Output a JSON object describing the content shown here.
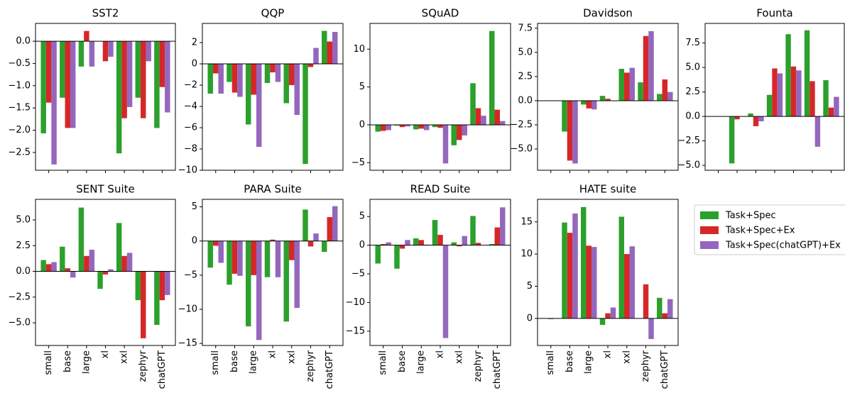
{
  "legend": {
    "series": [
      {
        "name": "Task+Spec",
        "color": "#2ca02c"
      },
      {
        "name": "Task+Spec+Ex",
        "color": "#d62728"
      },
      {
        "name": "Task+Spec(chatGPT)+Ex",
        "color": "#9467bd"
      }
    ]
  },
  "chart_data": [
    {
      "type": "bar",
      "title": "SST2",
      "categories": [
        null,
        null,
        null,
        null,
        null,
        null,
        null
      ],
      "series": [
        {
          "values": [
            -2.07,
            -1.27,
            -0.57,
            0,
            -2.52,
            -1.27,
            -1.95
          ]
        },
        {
          "values": [
            -1.38,
            -1.95,
            0.23,
            -0.45,
            -1.73,
            -1.73,
            -1.03
          ]
        },
        {
          "values": [
            -2.77,
            -1.95,
            -0.57,
            -0.35,
            -1.48,
            -0.45,
            -1.6
          ]
        }
      ],
      "ylim": [
        -2.9,
        0.4
      ],
      "yticks": [
        {
          "value": 0,
          "label": "0.0"
        },
        {
          "value": -0.5,
          "label": "−0.5"
        },
        {
          "value": -1,
          "label": "−1.0"
        },
        {
          "value": -1.5,
          "label": "−1.5"
        },
        {
          "value": -2,
          "label": "−2.0"
        },
        {
          "value": -2.5,
          "label": "−2.5"
        }
      ]
    },
    {
      "type": "bar",
      "title": "QQP",
      "categories": [
        null,
        null,
        null,
        null,
        null,
        null,
        null
      ],
      "series": [
        {
          "values": [
            -2.8,
            -1.7,
            -5.7,
            -1.8,
            -3.7,
            -9.4,
            3.1
          ]
        },
        {
          "values": [
            -0.9,
            -2.7,
            -2.9,
            -0.8,
            -2.0,
            -0.3,
            2.1
          ]
        },
        {
          "values": [
            -2.8,
            -3.1,
            -7.8,
            -1.7,
            -4.8,
            1.5,
            3.0
          ]
        }
      ],
      "ylim": [
        -10,
        3.8
      ],
      "yticks": [
        2,
        0,
        {
          "value": -2,
          "label": "−2"
        },
        {
          "value": -4,
          "label": "−4"
        },
        {
          "value": -6,
          "label": "−6"
        },
        {
          "value": -8,
          "label": "−8"
        },
        {
          "value": -10,
          "label": "−10"
        }
      ]
    },
    {
      "type": "bar",
      "title": "SQuAD",
      "categories": [
        null,
        null,
        null,
        null,
        null,
        null,
        null
      ],
      "series": [
        {
          "values": [
            -0.9,
            -0.1,
            -0.6,
            -0.3,
            -2.7,
            5.5,
            12.4
          ]
        },
        {
          "values": [
            -0.8,
            -0.3,
            -0.5,
            -0.4,
            -2.0,
            2.2,
            2.0
          ]
        },
        {
          "values": [
            -0.7,
            -0.2,
            -0.7,
            -5.1,
            -1.4,
            1.2,
            0.5
          ]
        }
      ],
      "ylim": [
        -6,
        13.4
      ],
      "yticks": [
        10,
        5,
        0,
        {
          "value": -5,
          "label": "−5"
        }
      ]
    },
    {
      "type": "bar",
      "title": "Davidson",
      "categories": [
        null,
        null,
        null,
        null,
        null,
        null,
        null
      ],
      "series": [
        {
          "values": [
            0,
            -3.2,
            -0.4,
            0.5,
            3.3,
            1.9,
            0.7
          ]
        },
        {
          "values": [
            0,
            -6.2,
            -0.8,
            0.2,
            2.9,
            6.7,
            2.2
          ]
        },
        {
          "values": [
            0,
            -6.5,
            -0.9,
            0,
            3.4,
            7.2,
            0.9
          ]
        }
      ],
      "ylim": [
        -7.2,
        8.0
      ],
      "yticks": [
        {
          "value": 7.5,
          "label": "7.5"
        },
        {
          "value": 5,
          "label": "5.0"
        },
        {
          "value": 2.5,
          "label": "2.5"
        },
        {
          "value": 0,
          "label": "0.0"
        },
        {
          "value": -2.5,
          "label": "−2.5"
        },
        {
          "value": -5,
          "label": "−5.0"
        }
      ]
    },
    {
      "type": "bar",
      "title": "Founta",
      "categories": [
        null,
        null,
        null,
        null,
        null,
        null,
        null
      ],
      "series": [
        {
          "values": [
            0,
            -4.8,
            0.3,
            2.2,
            8.4,
            8.8,
            3.7
          ]
        },
        {
          "values": [
            0,
            -0.3,
            -1.0,
            4.9,
            5.1,
            3.6,
            0.9
          ]
        },
        {
          "values": [
            0,
            0,
            -0.5,
            4.4,
            4.7,
            -3.1,
            2.0
          ]
        }
      ],
      "ylim": [
        -5.5,
        9.5
      ],
      "yticks": [
        {
          "value": 7.5,
          "label": "7.5"
        },
        {
          "value": 5,
          "label": "5.0"
        },
        {
          "value": 2.5,
          "label": "2.5"
        },
        {
          "value": 0,
          "label": "0.0"
        },
        {
          "value": -2.5,
          "label": "−2.5"
        },
        {
          "value": -5,
          "label": "−5.0"
        }
      ]
    },
    {
      "type": "bar",
      "title": "SENT Suite",
      "categories": [
        "small",
        "base",
        "large",
        "xl",
        "xxl",
        "zephyr",
        "chatGPT"
      ],
      "series": [
        {
          "values": [
            1.1,
            2.4,
            6.2,
            -1.7,
            4.7,
            -2.8,
            -5.2
          ]
        },
        {
          "values": [
            0.7,
            0.3,
            1.5,
            -0.3,
            1.5,
            -6.5,
            -2.8
          ]
        },
        {
          "values": [
            0.9,
            -0.6,
            2.1,
            0.2,
            1.8,
            0,
            -2.3
          ]
        }
      ],
      "ylim": [
        -7.2,
        7.0
      ],
      "yticks": [
        {
          "value": 5,
          "label": "5.0"
        },
        {
          "value": 2.5,
          "label": "2.5"
        },
        {
          "value": 0,
          "label": "0.0"
        },
        {
          "value": -2.5,
          "label": "−2.5"
        },
        {
          "value": -5,
          "label": "−5.0"
        }
      ]
    },
    {
      "type": "bar",
      "title": "PARA Suite",
      "categories": [
        "small",
        "base",
        "large",
        "xl",
        "xxl",
        "zephyr",
        "chatGPT"
      ],
      "series": [
        {
          "values": [
            -3.9,
            -6.4,
            -12.5,
            -5.3,
            -11.8,
            4.6,
            -1.6
          ]
        },
        {
          "values": [
            -0.7,
            -4.8,
            -5.0,
            0.2,
            -2.8,
            -0.8,
            3.5
          ]
        },
        {
          "values": [
            -3.2,
            -5.1,
            -14.5,
            -5.3,
            -9.8,
            1.1,
            5.1
          ]
        }
      ],
      "ylim": [
        -15.3,
        6.1
      ],
      "yticks": [
        5,
        0,
        {
          "value": -5,
          "label": "−5"
        },
        {
          "value": -10,
          "label": "−10"
        },
        {
          "value": -15,
          "label": "−15"
        }
      ]
    },
    {
      "type": "bar",
      "title": "READ Suite",
      "categories": [
        "small",
        "base",
        "large",
        "xl",
        "xxl",
        "zephyr",
        "chatGPT"
      ],
      "series": [
        {
          "values": [
            -3.2,
            -4.1,
            1.2,
            4.4,
            0.5,
            5.1,
            0.2
          ]
        },
        {
          "values": [
            0.2,
            -0.6,
            0.9,
            1.8,
            -0.2,
            0.4,
            3.1
          ]
        },
        {
          "values": [
            0.5,
            0.9,
            0.1,
            -16.2,
            1.6,
            0,
            6.6
          ]
        }
      ],
      "ylim": [
        -17.5,
        8.0
      ],
      "yticks": [
        5,
        0,
        {
          "value": -5,
          "label": "−5"
        },
        {
          "value": -10,
          "label": "−10"
        },
        {
          "value": -15,
          "label": "−15"
        }
      ]
    },
    {
      "type": "bar",
      "title": "HATE suite",
      "categories": [
        "small",
        "base",
        "large",
        "xl",
        "xxl",
        "zephyr",
        "chatGPT"
      ],
      "series": [
        {
          "values": [
            0,
            14.9,
            17.3,
            -1.0,
            15.8,
            0,
            3.2
          ]
        },
        {
          "values": [
            -0.1,
            13.3,
            11.3,
            0.8,
            10.0,
            5.3,
            0.8
          ]
        },
        {
          "values": [
            0,
            16.3,
            11.1,
            1.7,
            11.2,
            -3.2,
            3.0
          ]
        }
      ],
      "ylim": [
        -4.2,
        18.5
      ],
      "yticks": [
        15,
        10,
        5,
        0
      ]
    }
  ]
}
